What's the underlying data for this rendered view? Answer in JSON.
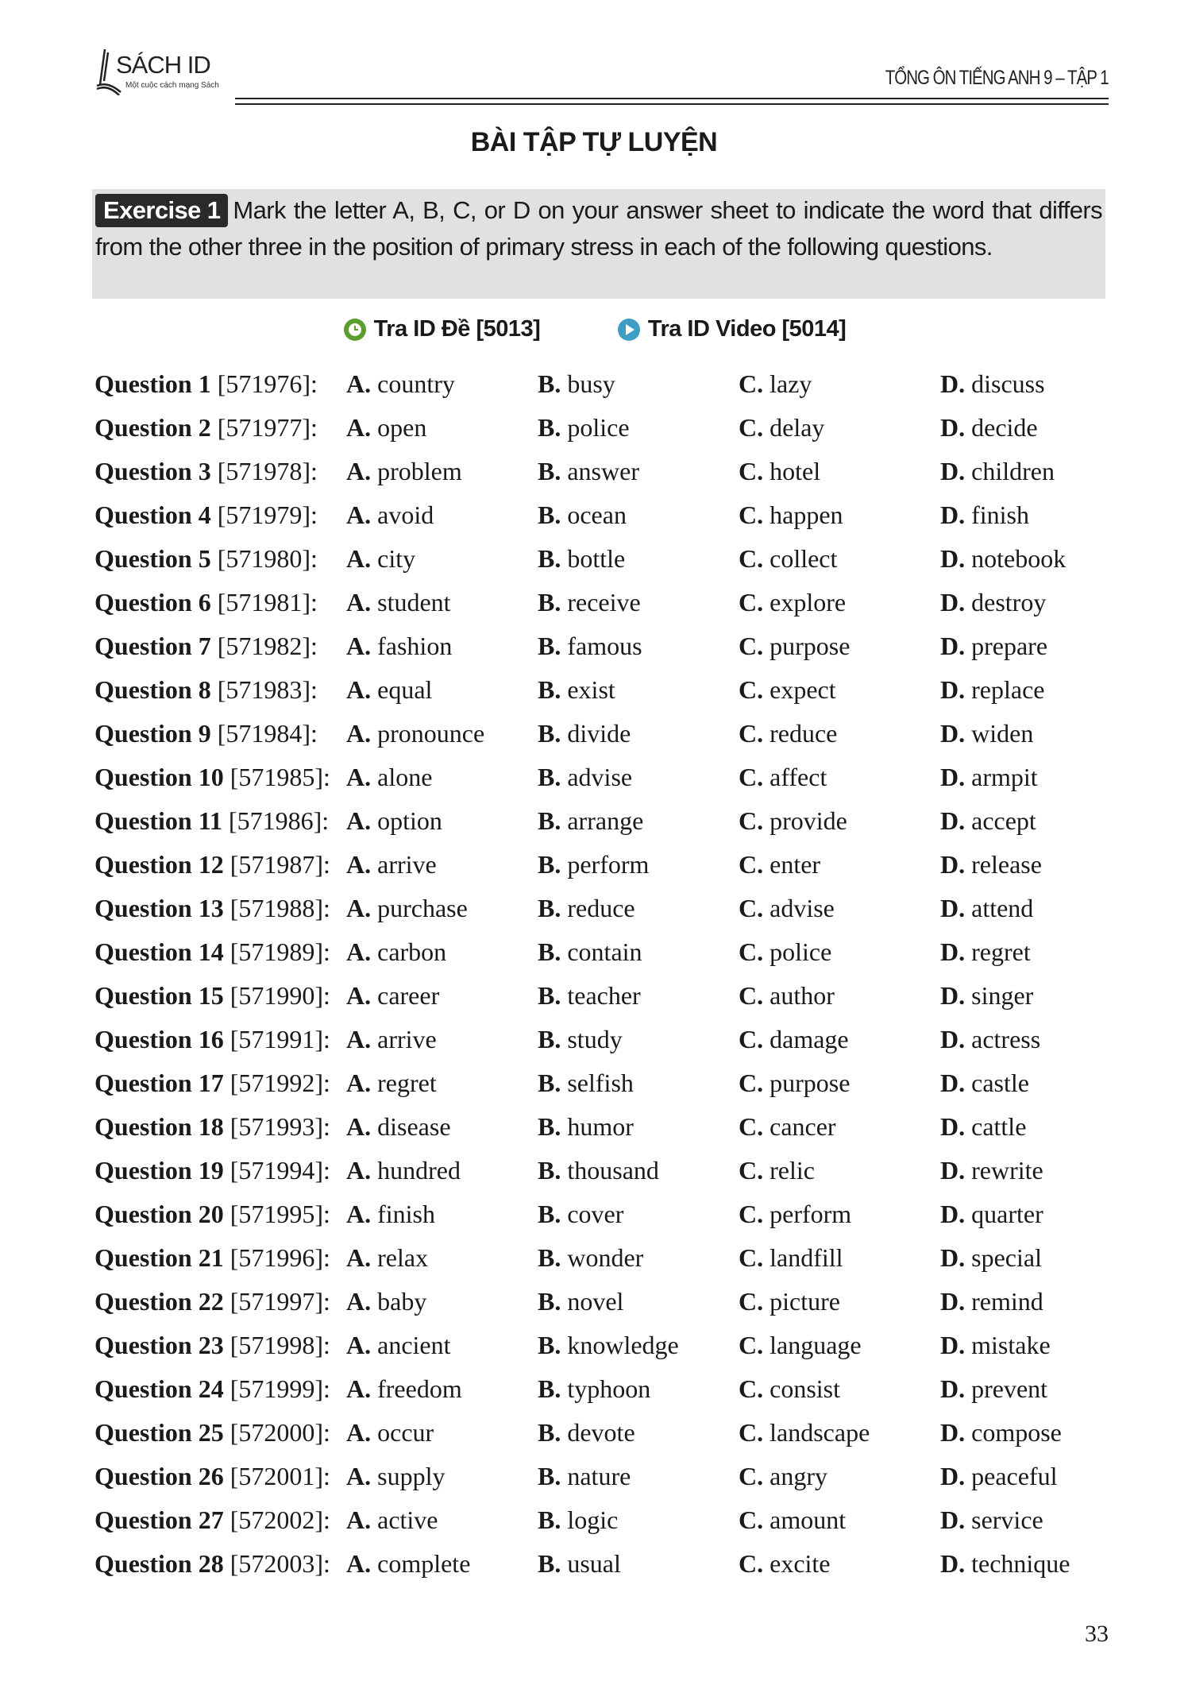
{
  "header": {
    "logo_brand": "SÁCH ID",
    "logo_tagline": "Một cuộc cách mạng Sách",
    "book_title": "TỔNG ÔN TIẾNG ANH 9 – TẬP 1"
  },
  "section_title": "BÀI TẬP TỰ LUYỆN",
  "exercise": {
    "badge": "Exercise 1",
    "instruction": "Mark the letter A, B, C, or D on your answer sheet to indicate the word that differs from the other three in the position of primary stress in each of the following questions."
  },
  "links": [
    {
      "label": "Tra ID Đề [5013]",
      "icon": "clock-icon",
      "color": "#5a9e2f"
    },
    {
      "label": "Tra ID Video [5014]",
      "icon": "play-icon",
      "color": "#3d9ec4"
    }
  ],
  "option_letters": [
    "A.",
    "B.",
    "C.",
    "D."
  ],
  "questions": [
    {
      "label": "Question 1",
      "id": "[571976]:",
      "options": [
        "country",
        "busy",
        "lazy",
        "discuss"
      ]
    },
    {
      "label": "Question 2",
      "id": "[571977]:",
      "options": [
        "open",
        "police",
        "delay",
        "decide"
      ]
    },
    {
      "label": "Question 3",
      "id": "[571978]:",
      "options": [
        "problem",
        "answer",
        "hotel",
        "children"
      ]
    },
    {
      "label": "Question 4",
      "id": "[571979]:",
      "options": [
        "avoid",
        "ocean",
        "happen",
        "finish"
      ]
    },
    {
      "label": "Question 5",
      "id": "[571980]:",
      "options": [
        "city",
        "bottle",
        "collect",
        "notebook"
      ]
    },
    {
      "label": "Question 6",
      "id": "[571981]:",
      "options": [
        "student",
        "receive",
        "explore",
        "destroy"
      ]
    },
    {
      "label": "Question 7",
      "id": "[571982]:",
      "options": [
        "fashion",
        "famous",
        "purpose",
        "prepare"
      ]
    },
    {
      "label": "Question 8",
      "id": "[571983]:",
      "options": [
        "equal",
        "exist",
        "expect",
        "replace"
      ]
    },
    {
      "label": "Question 9",
      "id": "[571984]:",
      "options": [
        "pronounce",
        "divide",
        "reduce",
        "widen"
      ]
    },
    {
      "label": "Question 10",
      "id": "[571985]:",
      "options": [
        "alone",
        "advise",
        "affect",
        "armpit"
      ]
    },
    {
      "label": "Question 11",
      "id": "[571986]:",
      "options": [
        "option",
        "arrange",
        "provide",
        "accept"
      ]
    },
    {
      "label": "Question 12",
      "id": "[571987]:",
      "options": [
        "arrive",
        "perform",
        "enter",
        "release"
      ]
    },
    {
      "label": "Question 13",
      "id": "[571988]:",
      "options": [
        "purchase",
        "reduce",
        "advise",
        "attend"
      ]
    },
    {
      "label": "Question 14",
      "id": "[571989]:",
      "options": [
        "carbon",
        "contain",
        "police",
        "regret"
      ]
    },
    {
      "label": "Question 15",
      "id": "[571990]:",
      "options": [
        "career",
        "teacher",
        "author",
        "singer"
      ]
    },
    {
      "label": "Question 16",
      "id": "[571991]:",
      "options": [
        "arrive",
        "study",
        "damage",
        "actress"
      ]
    },
    {
      "label": "Question 17",
      "id": "[571992]:",
      "options": [
        "regret",
        "selfish",
        "purpose",
        "castle"
      ]
    },
    {
      "label": "Question 18",
      "id": "[571993]:",
      "options": [
        "disease",
        "humor",
        "cancer",
        "cattle"
      ]
    },
    {
      "label": "Question 19",
      "id": "[571994]:",
      "options": [
        "hundred",
        "thousand",
        "relic",
        "rewrite"
      ]
    },
    {
      "label": "Question 20",
      "id": "[571995]:",
      "options": [
        "finish",
        "cover",
        "perform",
        "quarter"
      ]
    },
    {
      "label": "Question 21",
      "id": "[571996]:",
      "options": [
        "relax",
        "wonder",
        "landfill",
        "special"
      ]
    },
    {
      "label": "Question 22",
      "id": "[571997]:",
      "options": [
        "baby",
        "novel",
        "picture",
        "remind"
      ]
    },
    {
      "label": "Question 23",
      "id": "[571998]:",
      "options": [
        "ancient",
        "knowledge",
        "language",
        "mistake"
      ]
    },
    {
      "label": "Question 24",
      "id": "[571999]:",
      "options": [
        "freedom",
        "typhoon",
        "consist",
        "prevent"
      ]
    },
    {
      "label": "Question 25",
      "id": "[572000]:",
      "options": [
        "occur",
        "devote",
        "landscape",
        "compose"
      ]
    },
    {
      "label": "Question 26",
      "id": "[572001]:",
      "options": [
        "supply",
        "nature",
        "angry",
        "peaceful"
      ]
    },
    {
      "label": "Question 27",
      "id": "[572002]:",
      "options": [
        "active",
        "logic",
        "amount",
        "service"
      ]
    },
    {
      "label": "Question 28",
      "id": "[572003]:",
      "options": [
        "complete",
        "usual",
        "excite",
        "technique"
      ]
    }
  ],
  "page_number": "33"
}
